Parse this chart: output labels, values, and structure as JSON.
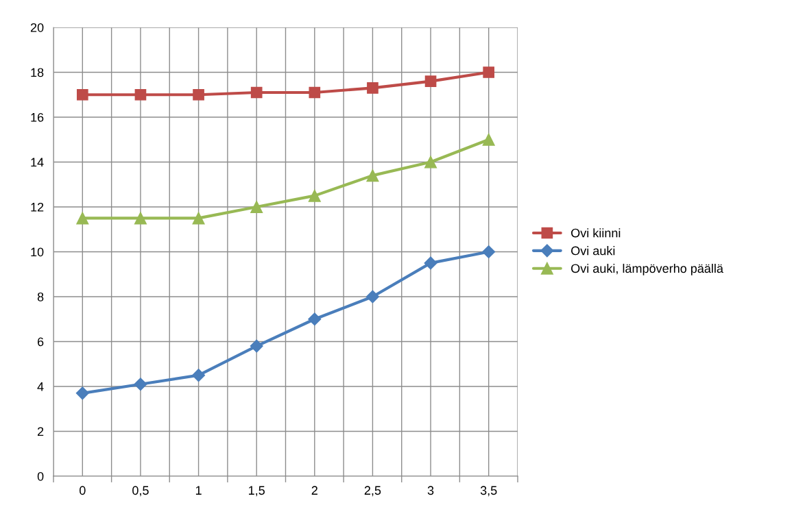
{
  "chart_data": {
    "type": "line",
    "categories": [
      "0",
      "0,5",
      "1",
      "1,5",
      "2",
      "2,5",
      "3",
      "3,5"
    ],
    "series": [
      {
        "name": "Ovi kiinni",
        "color": "#be4b48",
        "marker": "square",
        "values": [
          17,
          17,
          17,
          17.1,
          17.1,
          17.3,
          17.6,
          18
        ]
      },
      {
        "name": "Ovi auki",
        "color": "#4a7ebb",
        "marker": "diamond",
        "values": [
          3.7,
          4.1,
          4.5,
          5.8,
          7,
          8,
          9.5,
          10
        ]
      },
      {
        "name": "Ovi auki, lämpöverho päällä",
        "color": "#98b954",
        "marker": "triangle",
        "values": [
          11.5,
          11.5,
          11.5,
          12,
          12.5,
          13.4,
          14,
          15
        ]
      }
    ],
    "ylim": [
      0,
      20
    ],
    "yticks": [
      0,
      2,
      4,
      6,
      8,
      10,
      12,
      14,
      16,
      18,
      20
    ],
    "grid": true,
    "legend": "right",
    "line_style": "solid"
  }
}
